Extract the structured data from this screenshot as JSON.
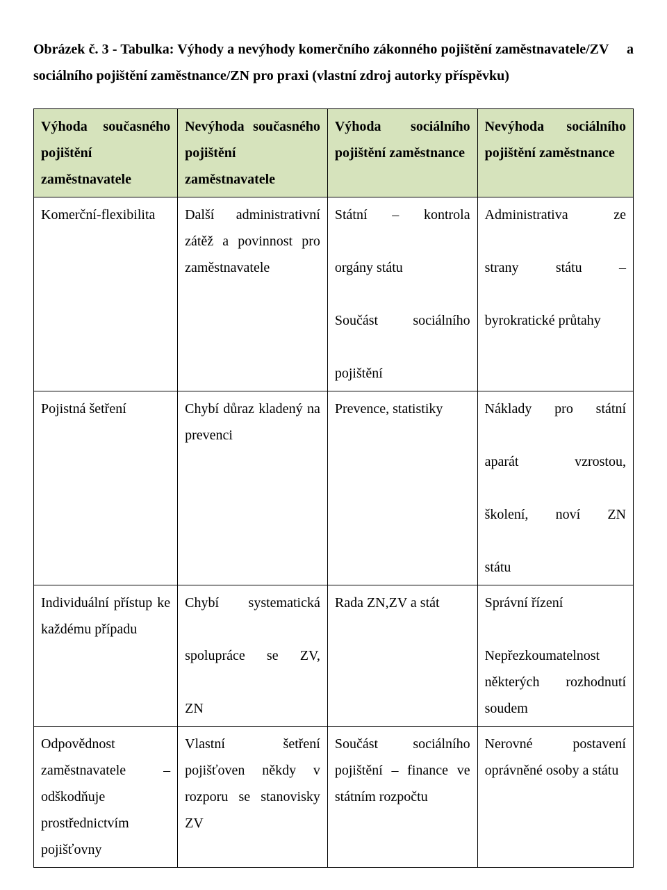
{
  "caption_parts": {
    "a": "Obrázek č. 3 - Tabulka: Výhody a nevýhody komerčního zákonného pojištění zaměstnavatele/ZV",
    "b": "a sociálního pojištění zaměstnance/ZN pro praxi (vlastní zdroj autorky příspěvku)"
  },
  "table": {
    "header": {
      "col1": "Výhoda současného pojištění zaměstnavatele",
      "col2": "Nevýhoda současného pojištění zaměstnavatele",
      "col3": "Výhoda sociálního pojištění zaměstnance",
      "col4": "Nevýhoda sociálního pojištění zaměstnance"
    },
    "rows": [
      {
        "c1": "Komerční-flexibilita",
        "c2": "Další administrativní zátěž a povinnost pro zaměstnavatele",
        "c3_line1": "Státní – kontrola",
        "c3_line2": "orgány státu",
        "c3_line3": "Součást sociálního",
        "c3_line4": "pojištění",
        "c4_line1": "Administrativa ze",
        "c4_line2": "strany státu –",
        "c4_line3": "byrokratické průtahy"
      },
      {
        "c1": "Pojistná šetření",
        "c2": "Chybí důraz kladený na prevenci",
        "c3": "Prevence, statistiky",
        "c4_line1": "Náklady pro státní",
        "c4_line2": "aparát vzrostou,",
        "c4_line3": "školení, noví ZN",
        "c4_line4": "státu"
      },
      {
        "c1": "Individuální přístup ke každému případu",
        "c2_line1": "Chybí systematická",
        "c2_line2": "spolupráce se ZV,",
        "c2_line3": "ZN",
        "c3": "Rada ZN,ZV a stát",
        "c4_line1": "Správní řízení",
        "c4_blank": " ",
        "c4_line2": "Nepřezkoumatelnost některých rozhodnutí soudem"
      },
      {
        "c1": "Odpovědnost zaměstnavatele – odškodňuje prostřednictvím pojišťovny",
        "c2": "Vlastní šetření pojišťoven někdy v rozporu se stanovisky ZV",
        "c3": "Součást sociálního pojištění – finance ve státním rozpočtu",
        "c4": "Nerovné postavení oprávněné osoby a státu"
      }
    ]
  },
  "colors": {
    "header_bg": "#d6e3bc",
    "border": "#000000",
    "text": "#000000",
    "page_bg": "#ffffff"
  }
}
